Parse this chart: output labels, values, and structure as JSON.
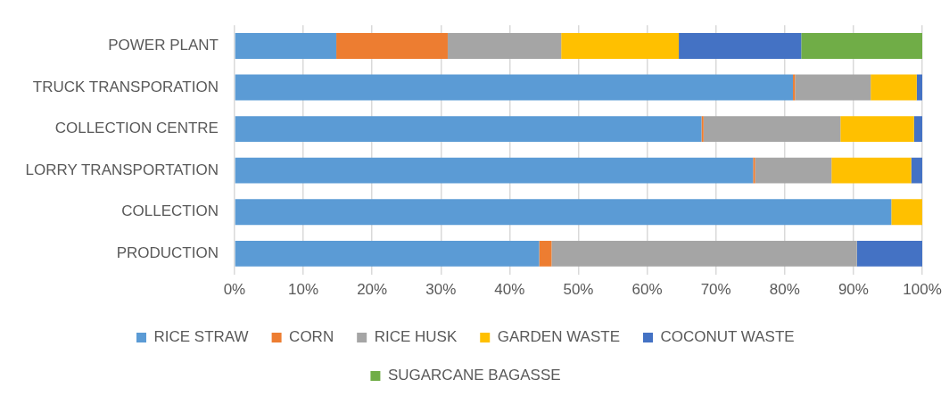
{
  "chart_data": {
    "type": "bar",
    "orientation": "horizontal",
    "stacked": true,
    "categories": [
      "POWER PLANT",
      "TRUCK TRANSPORATION",
      "COLLECTION CENTRE",
      "LORRY TRANSPORTATION",
      "COLLECTION",
      "PRODUCTION"
    ],
    "series": [
      {
        "name": "RICE STRAW",
        "color": "#5b9bd5",
        "values": [
          14.8,
          81.2,
          67.9,
          75.4,
          95.5,
          44.3
        ]
      },
      {
        "name": "CORN",
        "color": "#ed7d31",
        "values": [
          16.2,
          0.3,
          0.3,
          0.3,
          0,
          1.8
        ]
      },
      {
        "name": "RICE HUSK",
        "color": "#a5a5a5",
        "values": [
          16.5,
          11,
          19.9,
          11.1,
          0,
          44.4
        ]
      },
      {
        "name": "GARDEN WASTE",
        "color": "#ffc000",
        "values": [
          17.1,
          6.7,
          10.7,
          11.6,
          4.5,
          0
        ]
      },
      {
        "name": "COCONUT WASTE",
        "color": "#4472c4",
        "values": [
          17.8,
          0.8,
          1.2,
          1.6,
          0,
          9.5
        ]
      },
      {
        "name": "SUGARCANE BAGASSE",
        "color": "#70ad47",
        "values": [
          17.6,
          0,
          0,
          0,
          0,
          0
        ]
      }
    ],
    "xlim": [
      0,
      100
    ],
    "xticks": [
      {
        "value": 0,
        "label": "0%"
      },
      {
        "value": 10,
        "label": "10%"
      },
      {
        "value": 20,
        "label": "20%"
      },
      {
        "value": 30,
        "label": "30%"
      },
      {
        "value": 40,
        "label": "40%"
      },
      {
        "value": 50,
        "label": "50%"
      },
      {
        "value": 60,
        "label": "60%"
      },
      {
        "value": 70,
        "label": "70%"
      },
      {
        "value": 80,
        "label": "80%"
      },
      {
        "value": 90,
        "label": "90%"
      },
      {
        "value": 100,
        "label": "100%"
      }
    ],
    "grid": "x",
    "legend": "bottom"
  }
}
